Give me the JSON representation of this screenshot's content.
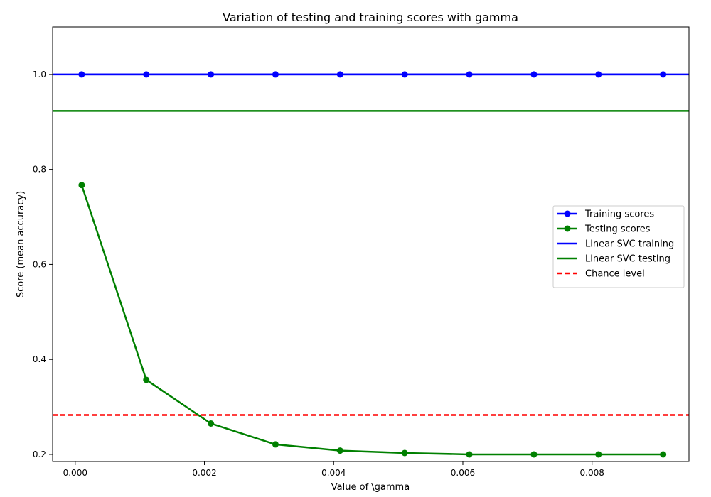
{
  "chart_data": {
    "type": "line",
    "title": "Variation of testing and training scores with gamma",
    "xlabel": "Value of \\gamma",
    "ylabel": "Score (mean accuracy)",
    "xlim": [
      -0.00035,
      0.0095
    ],
    "ylim": [
      0.185,
      1.1
    ],
    "x_ticks": [
      {
        "value": 0.0,
        "label": "0.000"
      },
      {
        "value": 0.002,
        "label": "0.002"
      },
      {
        "value": 0.004,
        "label": "0.004"
      },
      {
        "value": 0.006,
        "label": "0.006"
      },
      {
        "value": 0.008,
        "label": "0.008"
      }
    ],
    "y_ticks": [
      {
        "value": 0.2,
        "label": "0.2"
      },
      {
        "value": 0.4,
        "label": "0.4"
      },
      {
        "value": 0.6,
        "label": "0.6"
      },
      {
        "value": 0.8,
        "label": "0.8"
      },
      {
        "value": 1.0,
        "label": "1.0"
      }
    ],
    "grid": false,
    "legend_position": "center-right",
    "x": [
      0.0001,
      0.0011,
      0.0021,
      0.0031,
      0.0041,
      0.0051,
      0.0061,
      0.0071,
      0.0081,
      0.0091
    ],
    "series": [
      {
        "name": "Training scores",
        "kind": "line-markers",
        "color": "#0000ff",
        "values": [
          1.0,
          1.0,
          1.0,
          1.0,
          1.0,
          1.0,
          1.0,
          1.0,
          1.0,
          1.0
        ]
      },
      {
        "name": "Testing scores",
        "kind": "line-markers",
        "color": "#008000",
        "values": [
          0.767,
          0.357,
          0.265,
          0.221,
          0.208,
          0.203,
          0.2,
          0.2,
          0.2,
          0.2
        ]
      }
    ],
    "hlines": [
      {
        "name": "Linear SVC training",
        "value": 1.0,
        "color": "#0000ff",
        "style": "solid"
      },
      {
        "name": "Linear SVC testing",
        "value": 0.923,
        "color": "#008000",
        "style": "solid"
      },
      {
        "name": "Chance level",
        "value": 0.283,
        "color": "#ff0000",
        "style": "dashed"
      }
    ]
  }
}
